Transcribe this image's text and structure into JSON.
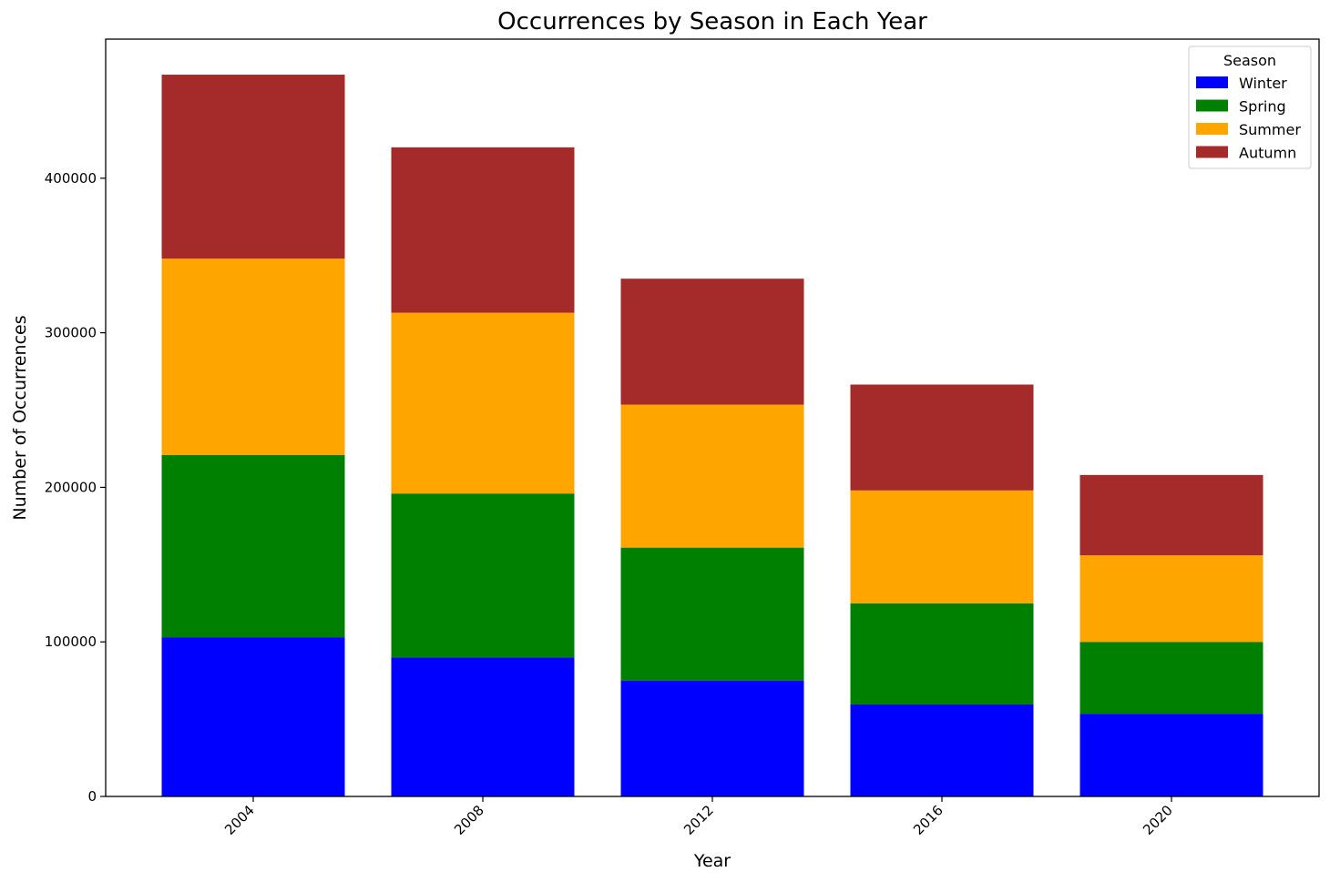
{
  "chart_data": {
    "type": "bar",
    "stacked": true,
    "title": "Occurrences by Season in Each Year",
    "xlabel": "Year",
    "ylabel": "Number of Occurrences",
    "categories": [
      "2004",
      "2008",
      "2012",
      "2016",
      "2020"
    ],
    "series": [
      {
        "name": "Winter",
        "color": "#0000ff",
        "values": [
          103000,
          90000,
          75000,
          59500,
          53500
        ]
      },
      {
        "name": "Spring",
        "color": "#008000",
        "values": [
          118000,
          106000,
          86000,
          65500,
          46500
        ]
      },
      {
        "name": "Summer",
        "color": "#ffa500",
        "values": [
          127000,
          117000,
          92500,
          73000,
          56000
        ]
      },
      {
        "name": "Autumn",
        "color": "#a52a2a",
        "values": [
          119000,
          107000,
          81500,
          68500,
          52000
        ]
      }
    ],
    "ylim": [
      0,
      490000
    ],
    "yticks": [
      0,
      100000,
      200000,
      300000,
      400000
    ],
    "ytick_labels": [
      "0",
      "100000",
      "200000",
      "300000",
      "400000"
    ],
    "legend": {
      "title": "Season",
      "position": "top-right"
    },
    "grid": false
  }
}
